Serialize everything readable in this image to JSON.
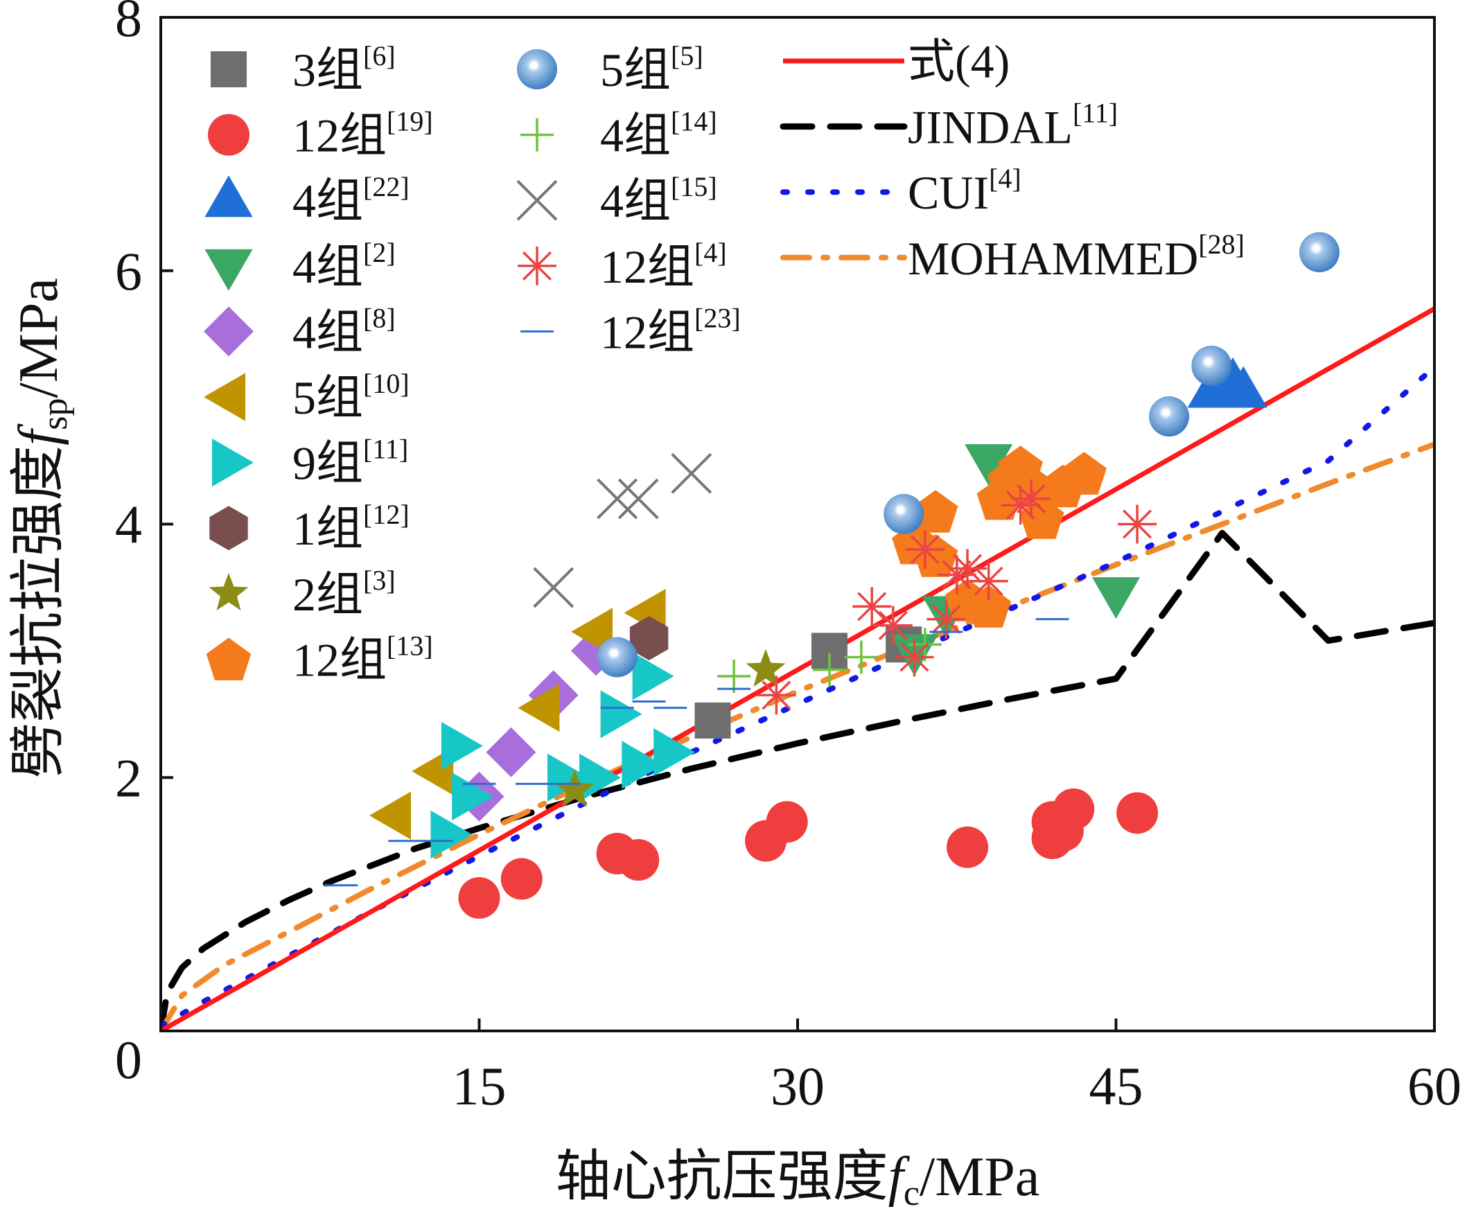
{
  "chart_data": {
    "type": "scatter",
    "xlabel_main": "轴心抗压强度",
    "xlabel_sym": "f",
    "xlabel_sub": "c",
    "xlabel_unit": "/MPa",
    "ylabel_main": "劈裂抗拉强度",
    "ylabel_sym": "f",
    "ylabel_sub": "sp",
    "ylabel_unit": "/MPa",
    "xlim": [
      0,
      60
    ],
    "ylim": [
      0,
      8
    ],
    "xticks": [
      0,
      15,
      30,
      45,
      60
    ],
    "yticks": [
      0,
      2,
      4,
      6,
      8
    ],
    "legend_position": "top-left",
    "series": [
      {
        "name": "3组",
        "ref": "[6]",
        "marker": "square",
        "color": "#6e6e6e",
        "points": [
          [
            26,
            2.45
          ],
          [
            31.5,
            3.0
          ],
          [
            35,
            3.05
          ]
        ]
      },
      {
        "name": "12组",
        "ref": "[19]",
        "marker": "circle",
        "color": "#ee3e3e",
        "points": [
          [
            15,
            1.05
          ],
          [
            17,
            1.2
          ],
          [
            21.5,
            1.4
          ],
          [
            22.5,
            1.35
          ],
          [
            28.5,
            1.5
          ],
          [
            29.5,
            1.65
          ],
          [
            38,
            1.45
          ],
          [
            42,
            1.65
          ],
          [
            42,
            1.52
          ],
          [
            42.5,
            1.58
          ],
          [
            43,
            1.75
          ],
          [
            46,
            1.72
          ]
        ]
      },
      {
        "name": "4组",
        "ref": "[22]",
        "marker": "triangle-up",
        "color": "#1f6fd6",
        "points": [
          [
            49.5,
            5.05
          ],
          [
            50,
            5.1
          ],
          [
            50.5,
            5.12
          ],
          [
            51,
            5.05
          ]
        ]
      },
      {
        "name": "4组",
        "ref": "[2]",
        "marker": "triangle-down",
        "color": "#3aa764",
        "points": [
          [
            35.5,
            3.0
          ],
          [
            37,
            3.3
          ],
          [
            39,
            4.5
          ],
          [
            45,
            3.45
          ]
        ]
      },
      {
        "name": "4组",
        "ref": "[8]",
        "marker": "diamond",
        "color": "#a86fdc",
        "points": [
          [
            15,
            1.85
          ],
          [
            16.5,
            2.2
          ],
          [
            18.5,
            2.65
          ],
          [
            20.5,
            3.0
          ]
        ]
      },
      {
        "name": "5组",
        "ref": "[10]",
        "marker": "triangle-left",
        "color": "#c09400",
        "points": [
          [
            11,
            1.7
          ],
          [
            13,
            2.05
          ],
          [
            18,
            2.55
          ],
          [
            20.5,
            3.15
          ],
          [
            23,
            3.3
          ]
        ]
      },
      {
        "name": "9组",
        "ref": "[11]",
        "marker": "triangle-right",
        "color": "#17c6c6",
        "points": [
          [
            13.5,
            1.55
          ],
          [
            14,
            2.25
          ],
          [
            14.5,
            1.85
          ],
          [
            19,
            2.0
          ],
          [
            20.5,
            2.0
          ],
          [
            21.5,
            2.5
          ],
          [
            22.5,
            2.1
          ],
          [
            23,
            2.8
          ],
          [
            24,
            2.2
          ]
        ]
      },
      {
        "name": "1组",
        "ref": "[12]",
        "marker": "hexagon",
        "color": "#7a4e4e",
        "points": [
          [
            23,
            3.1
          ]
        ]
      },
      {
        "name": "2组",
        "ref": "[3]",
        "marker": "star",
        "color": "#8c8c14",
        "points": [
          [
            19.5,
            1.9
          ],
          [
            28.5,
            2.85
          ]
        ]
      },
      {
        "name": "12组",
        "ref": "[13]",
        "marker": "pentagon",
        "color": "#f57a1c",
        "points": [
          [
            35.5,
            3.85
          ],
          [
            36.5,
            4.1
          ],
          [
            36.5,
            3.75
          ],
          [
            38,
            3.4
          ],
          [
            39,
            3.35
          ],
          [
            39.5,
            4.2
          ],
          [
            40,
            4.35
          ],
          [
            40.5,
            4.45
          ],
          [
            41,
            4.3
          ],
          [
            41.5,
            4.05
          ],
          [
            42.5,
            4.3
          ],
          [
            43.5,
            4.4
          ]
        ]
      },
      {
        "name": "5组",
        "ref": "[5]",
        "marker": "sphere",
        "color": "#5e96cf",
        "points": [
          [
            21.5,
            2.95
          ],
          [
            35,
            4.08
          ],
          [
            47.5,
            4.85
          ],
          [
            49.5,
            5.25
          ]
        ]
      },
      {
        "name": "4组",
        "ref": "[14]",
        "marker": "plus",
        "color": "#6ec33a",
        "points": [
          [
            27,
            2.8
          ],
          [
            31.5,
            2.85
          ],
          [
            33,
            2.95
          ],
          [
            36,
            3.05
          ]
        ]
      },
      {
        "name": "4组",
        "ref": "[15]",
        "marker": "x",
        "color": "#777777",
        "points": [
          [
            18.5,
            3.5
          ],
          [
            21.5,
            4.2
          ],
          [
            22.5,
            4.2
          ],
          [
            25,
            4.4
          ]
        ]
      },
      {
        "name": "12组",
        "ref": "[4]",
        "marker": "asterisk",
        "color": "#ea4444",
        "points": [
          [
            29,
            2.65
          ],
          [
            33.5,
            3.35
          ],
          [
            34.5,
            3.2
          ],
          [
            35.5,
            2.95
          ],
          [
            36,
            3.8
          ],
          [
            37,
            3.25
          ],
          [
            37.5,
            3.6
          ],
          [
            38,
            3.65
          ],
          [
            39,
            3.55
          ],
          [
            40.5,
            4.15
          ],
          [
            41,
            4.2
          ],
          [
            46,
            4.0
          ]
        ]
      },
      {
        "name": "12组",
        "ref": "[23]",
        "marker": "dash",
        "color": "#2f6fcf",
        "points": [
          [
            8.5,
            1.15
          ],
          [
            11.5,
            1.5
          ],
          [
            13,
            1.5
          ],
          [
            15,
            1.95
          ],
          [
            17.5,
            1.95
          ],
          [
            19,
            1.95
          ],
          [
            21.5,
            2.55
          ],
          [
            23,
            2.6
          ],
          [
            24,
            2.55
          ],
          [
            27,
            2.7
          ],
          [
            37,
            3.15
          ],
          [
            42,
            3.25
          ]
        ]
      }
    ],
    "fit_lines": [
      {
        "name": "式(4)",
        "style": "solid",
        "color": "#ff1a1a",
        "x": [
          0,
          60
        ],
        "y": [
          0,
          5.7
        ]
      },
      {
        "name": "JINDAL",
        "ref": "[11]",
        "style": "dashed",
        "color": "#000000",
        "x": [
          0,
          0.3,
          1,
          2,
          4,
          6,
          8,
          10,
          12,
          15,
          20,
          25,
          30,
          35,
          40,
          45,
          50,
          55,
          60
        ],
        "y": [
          0,
          0.3,
          0.5,
          0.65,
          0.86,
          1.03,
          1.18,
          1.31,
          1.44,
          1.6,
          1.85,
          2.07,
          2.27,
          2.45,
          2.62,
          2.78,
          3.93,
          3.08,
          3.22
        ]
      },
      {
        "name": "CUI",
        "ref": "[4]",
        "style": "dotted",
        "color": "#1018e8",
        "x": [
          0,
          2,
          5,
          10,
          15,
          20,
          25,
          30,
          35,
          40,
          45,
          50,
          55,
          60
        ],
        "y": [
          0.04,
          0.23,
          0.5,
          0.95,
          1.38,
          1.8,
          2.2,
          2.58,
          2.96,
          3.33,
          3.7,
          4.1,
          4.5,
          5.24
        ]
      },
      {
        "name": "MOHAMMED",
        "ref": "[28]",
        "style": "dashdot",
        "color": "#f08a2c",
        "x": [
          0,
          1,
          3,
          6,
          10,
          15,
          20,
          25,
          30,
          35,
          40,
          45,
          50,
          55,
          60
        ],
        "y": [
          0,
          0.28,
          0.52,
          0.78,
          1.13,
          1.55,
          1.95,
          2.32,
          2.68,
          3.02,
          3.35,
          3.68,
          4.0,
          4.32,
          4.63
        ]
      }
    ]
  }
}
